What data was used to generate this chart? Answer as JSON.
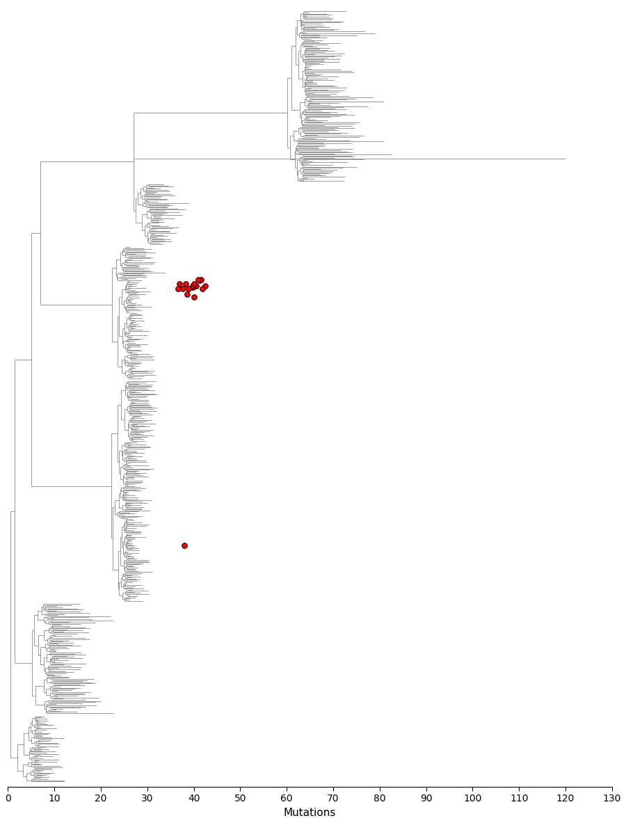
{
  "xlabel": "Mutations",
  "xlim": [
    0,
    130
  ],
  "xticks": [
    0,
    10,
    20,
    30,
    40,
    50,
    60,
    70,
    80,
    90,
    100,
    110,
    120,
    130
  ],
  "tree_color": "#888888",
  "tree_linewidth": 0.6,
  "background_color": "#ffffff",
  "red_dot_color": "#ff0000",
  "red_dot_edgecolor": "#000000",
  "red_dot_size": 30,
  "fig_width": 9.0,
  "fig_height": 11.83,
  "dpi": 100,
  "xlabel_fontsize": 11
}
